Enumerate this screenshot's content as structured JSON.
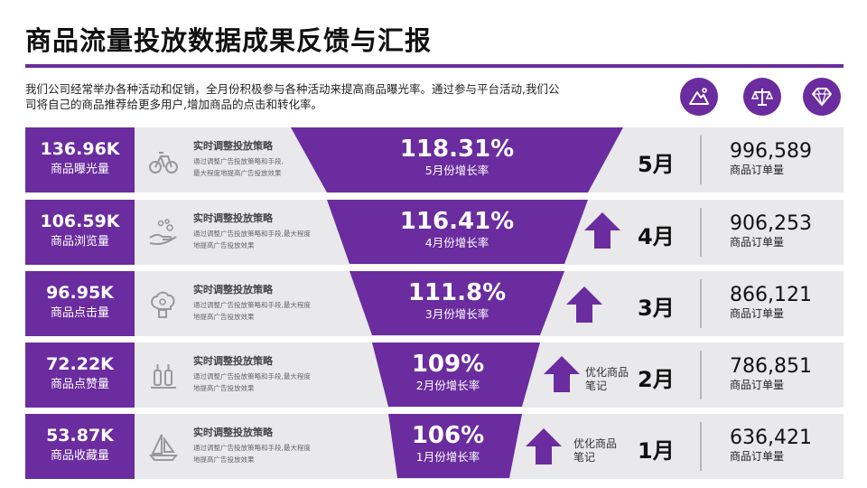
{
  "title": "商品流量投放数据成果反馈与汇报",
  "intro": "我们公司经常举办各种活动和促销，全月份积极参与各种活动来提高商品曝光率。通过参与平台活动,我们公司将自己的商品推荐给更多用户,增加商品的点击和转化率。",
  "top_icons": [
    "mountain-icon",
    "scale-icon",
    "diamond-icon"
  ],
  "accent_color": "#6a2c9e",
  "rows": [
    {
      "metric_value": "136.96K",
      "metric_label": "商品曝光量",
      "icon": "bicycle-icon",
      "strategy_title": "实时调整投放策略",
      "strategy_desc_1": "通过调整广告投放策略和手段,",
      "strategy_desc_2": "最大程度地提高广告投放效果",
      "rate": "118.31%",
      "rate_label": "5月份增长率",
      "month": "5月",
      "orders": "996,589",
      "orders_label": "商品订单量"
    },
    {
      "metric_value": "106.59K",
      "metric_label": "商品浏览量",
      "icon": "hand-bubbles-icon",
      "strategy_title": "实时调整投放策略",
      "strategy_desc_1": "通过调整广告投放策略和手段,最大程度",
      "strategy_desc_2": "地提高广告投放效果",
      "rate": "116.41%",
      "rate_label": "4月份增长率",
      "month": "4月",
      "orders": "906,253",
      "orders_label": "商品订单量"
    },
    {
      "metric_value": "96.95K",
      "metric_label": "商品点击量",
      "icon": "brain-gear-icon",
      "strategy_title": "实时调整投放策略",
      "strategy_desc_1": "通过调整广告投放策略和手段,最大程度",
      "strategy_desc_2": "地提高广告投放效果",
      "rate": "111.8%",
      "rate_label": "3月份增长率",
      "month": "3月",
      "orders": "866,121",
      "orders_label": "商品订单量"
    },
    {
      "metric_value": "72.22K",
      "metric_label": "商品点赞量",
      "icon": "bottles-icon",
      "strategy_title": "实时调整投放策略",
      "strategy_desc_1": "通过调整广告投放策略和手段,最大程度",
      "strategy_desc_2": "地提高广告投放效果",
      "rate": "109%",
      "rate_label": "2月份增长率",
      "note": "优化商品笔记",
      "month": "2月",
      "orders": "786,851",
      "orders_label": "商品订单量"
    },
    {
      "metric_value": "53.87K",
      "metric_label": "商品收藏量",
      "icon": "sailboat-icon",
      "strategy_title": "实时调整投放策略",
      "strategy_desc_1": "通过调整广告投放策略和手段,最大程度",
      "strategy_desc_2": "地提高广告投放效果",
      "rate": "106%",
      "rate_label": "1月份增长率",
      "note": "优化商品笔记",
      "month": "1月",
      "orders": "636,421",
      "orders_label": "商品订单量"
    }
  ]
}
